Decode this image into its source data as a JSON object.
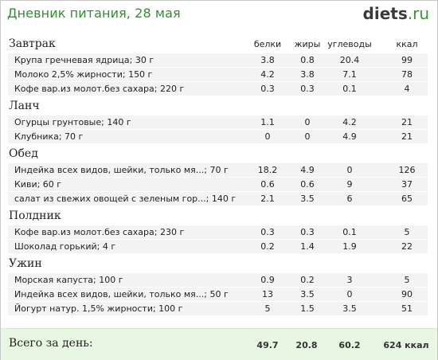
{
  "title": "Дневник питания, 28 мая",
  "logo": {
    "part1": "diets",
    "part2": ".ru"
  },
  "columns": {
    "protein": "белки",
    "fat": "жиры",
    "carbs": "углеводы",
    "kcal": "ккал"
  },
  "meals": [
    {
      "name": "Завтрак",
      "items": [
        {
          "name": "Крупа гречневая ядрица; 30 г",
          "protein": "3.8",
          "fat": "0.8",
          "carbs": "20.4",
          "kcal": "99"
        },
        {
          "name": "Молоко 2,5% жирности; 150 г",
          "protein": "4.2",
          "fat": "3.8",
          "carbs": "7.1",
          "kcal": "78"
        },
        {
          "name": "Кофе вар.из молот.без сахара; 220 г",
          "protein": "0.3",
          "fat": "0.3",
          "carbs": "0.1",
          "kcal": "4"
        }
      ]
    },
    {
      "name": "Ланч",
      "items": [
        {
          "name": "Огурцы грунтовые; 140 г",
          "protein": "1.1",
          "fat": "0",
          "carbs": "4.2",
          "kcal": "21"
        },
        {
          "name": "Клубника; 70 г",
          "protein": "0",
          "fat": "0",
          "carbs": "4.9",
          "kcal": "21"
        }
      ]
    },
    {
      "name": "Обед",
      "items": [
        {
          "name": "Индейка всех видов, шейки, только мя...; 70 г",
          "protein": "18.2",
          "fat": "4.9",
          "carbs": "0",
          "kcal": "126"
        },
        {
          "name": "Киви; 60 г",
          "protein": "0.6",
          "fat": "0.6",
          "carbs": "9",
          "kcal": "37"
        },
        {
          "name": "салат из свежих овощей с зеленым гор...; 140 г",
          "protein": "2.1",
          "fat": "3.5",
          "carbs": "6",
          "kcal": "65"
        }
      ]
    },
    {
      "name": "Полдник",
      "items": [
        {
          "name": "Кофе вар.из молот.без сахара; 230 г",
          "protein": "0.3",
          "fat": "0.3",
          "carbs": "0.1",
          "kcal": "5"
        },
        {
          "name": "Шоколад горький; 4 г",
          "protein": "0.2",
          "fat": "1.4",
          "carbs": "1.9",
          "kcal": "22"
        }
      ]
    },
    {
      "name": "Ужин",
      "items": [
        {
          "name": "Морская капуста; 100 г",
          "protein": "0.9",
          "fat": "0.2",
          "carbs": "3",
          "kcal": "5"
        },
        {
          "name": "Индейка всех видов, шейки, только мя...; 50 г",
          "protein": "13",
          "fat": "3.5",
          "carbs": "0",
          "kcal": "90"
        },
        {
          "name": "Йогурт натур. 1,5% жирности; 100 г",
          "protein": "5",
          "fat": "1.5",
          "carbs": "3.5",
          "kcal": "51"
        }
      ]
    }
  ],
  "totals": {
    "label": "Всего за день:",
    "protein": "49.7",
    "fat": "20.8",
    "carbs": "60.2",
    "kcal": "624 ккал"
  }
}
